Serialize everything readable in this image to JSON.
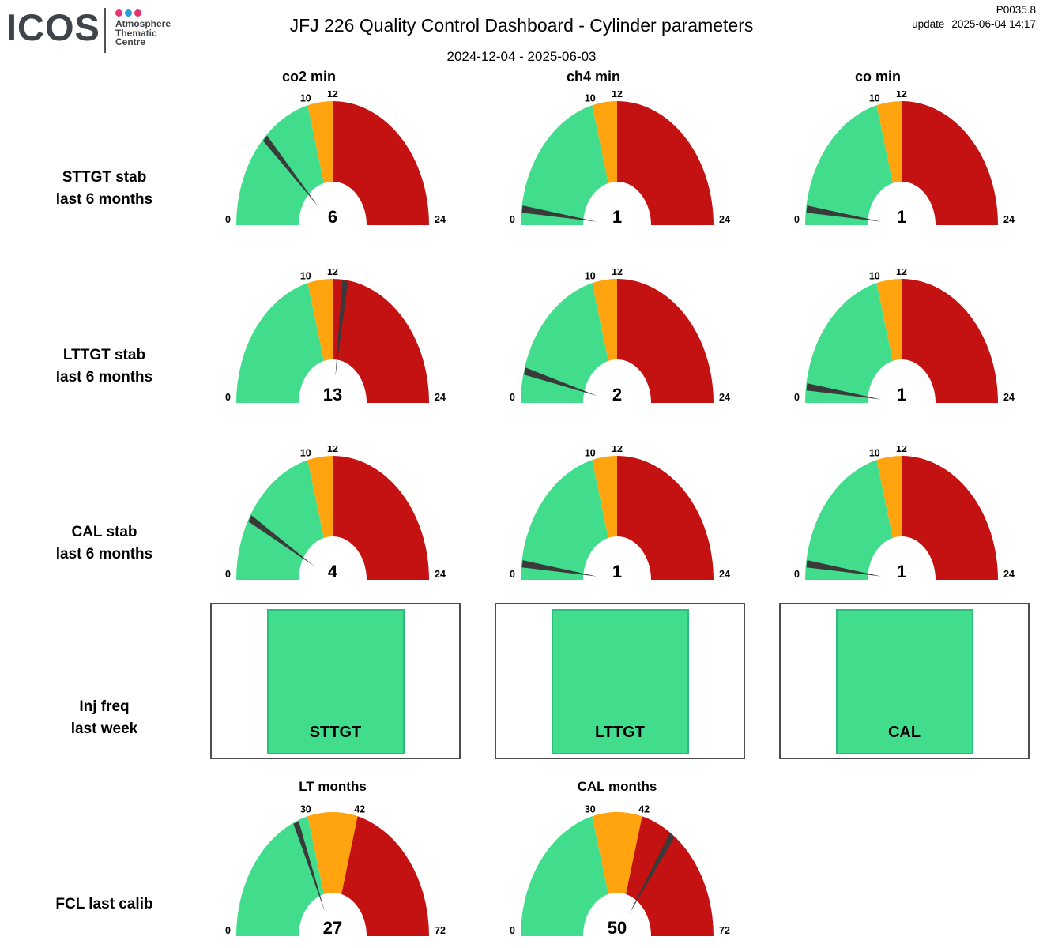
{
  "header": {
    "logo": {
      "brand": "ICOS",
      "org_lines": [
        "Atmosphere",
        "Thematic",
        "Centre"
      ],
      "dot_colors": [
        "#E73574",
        "#2F9BD8",
        "#E73574"
      ]
    },
    "title": "JFJ 226 Quality Control Dashboard - Cylinder parameters",
    "subtitle": "2024-12-04 - 2025-06-03",
    "code": "P0035.8",
    "update_label": "update",
    "update_datetime": "2025-06-04 14:17"
  },
  "columns": [
    "co2 min",
    "ch4 min",
    "co min"
  ],
  "row_labels": [
    {
      "line1": "STTGT stab",
      "line2": "last 6 months"
    },
    {
      "line1": "LTTGT stab",
      "line2": "last 6 months"
    },
    {
      "line1": "CAL stab",
      "line2": "last 6 months"
    },
    {
      "line1": "Inj freq",
      "line2": "last week"
    },
    {
      "line1": "FCL last calib",
      "line2": ""
    }
  ],
  "colors": {
    "green": "#42DD8C",
    "orange": "#FFA40E",
    "red": "#C41111",
    "needle": "#3A3A3A",
    "box_border": "#4D4D4D",
    "box_fill_border": "#2DBD7B"
  },
  "chart_data": {
    "type": "gauge-dashboard",
    "gauge_scales": {
      "stab": {
        "min": 0,
        "max": 24,
        "ticks": [
          0,
          10,
          12,
          24
        ],
        "bands": [
          {
            "from": 0,
            "to": 10,
            "color": "#42DD8C"
          },
          {
            "from": 10,
            "to": 12,
            "color": "#FFA40E"
          },
          {
            "from": 12,
            "to": 24,
            "color": "#C41111"
          }
        ]
      },
      "months": {
        "min": 0,
        "max": 72,
        "ticks": [
          0,
          30,
          42,
          72
        ],
        "bands": [
          {
            "from": 0,
            "to": 30,
            "color": "#42DD8C"
          },
          {
            "from": 30,
            "to": 42,
            "color": "#FFA40E"
          },
          {
            "from": 42,
            "to": 72,
            "color": "#C41111"
          }
        ]
      }
    },
    "gauges": [
      {
        "name": "sttgt-stab-co2",
        "row": 0,
        "col": 0,
        "scale": "stab",
        "value": 6
      },
      {
        "name": "sttgt-stab-ch4",
        "row": 0,
        "col": 1,
        "scale": "stab",
        "value": 1
      },
      {
        "name": "sttgt-stab-co",
        "row": 0,
        "col": 2,
        "scale": "stab",
        "value": 1
      },
      {
        "name": "lttgt-stab-co2",
        "row": 1,
        "col": 0,
        "scale": "stab",
        "value": 13
      },
      {
        "name": "lttgt-stab-ch4",
        "row": 1,
        "col": 1,
        "scale": "stab",
        "value": 2
      },
      {
        "name": "lttgt-stab-co",
        "row": 1,
        "col": 2,
        "scale": "stab",
        "value": 1
      },
      {
        "name": "cal-stab-co2",
        "row": 2,
        "col": 0,
        "scale": "stab",
        "value": 4
      },
      {
        "name": "cal-stab-ch4",
        "row": 2,
        "col": 1,
        "scale": "stab",
        "value": 1
      },
      {
        "name": "cal-stab-co",
        "row": 2,
        "col": 2,
        "scale": "stab",
        "value": 1
      },
      {
        "name": "fcl-lt-months",
        "row": 4,
        "col": 0,
        "scale": "months",
        "value": 27,
        "title": "LT months"
      },
      {
        "name": "fcl-cal-months",
        "row": 4,
        "col": 1,
        "scale": "months",
        "value": 50,
        "title": "CAL months"
      }
    ],
    "status_boxes": [
      {
        "label": "STTGT",
        "color": "#42DD8C"
      },
      {
        "label": "LTTGT",
        "color": "#42DD8C"
      },
      {
        "label": "CAL",
        "color": "#42DD8C"
      }
    ]
  }
}
